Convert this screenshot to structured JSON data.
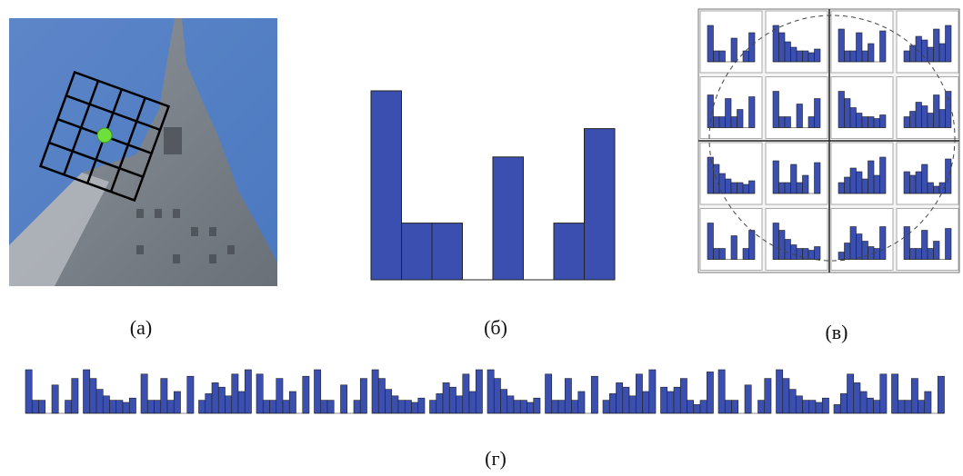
{
  "panels": [
    {
      "label": "(a)"
    },
    {
      "label": "(б)"
    },
    {
      "label": "(в)"
    },
    {
      "label": "(г)"
    }
  ]
}
